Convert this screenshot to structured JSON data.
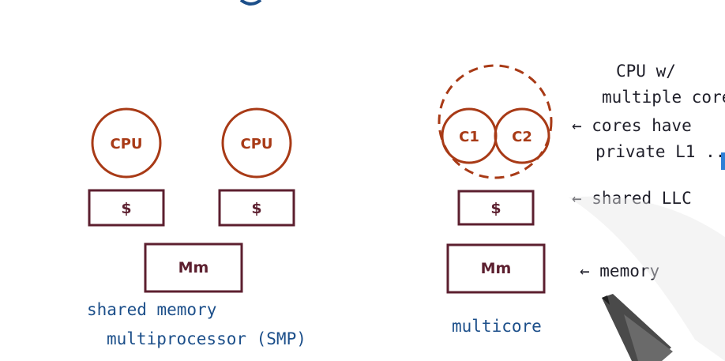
{
  "colors": {
    "cpu_stroke": "#a83a16",
    "box_stroke": "#5c1f2f",
    "caption_blue": "#1c4f8a",
    "note_ink": "#1f1f2a",
    "accent_blue": "#2f7fd6"
  },
  "smp": {
    "cpu_labels": [
      "CPU",
      "CPU"
    ],
    "cache_labels": [
      "$",
      "$"
    ],
    "memory_label": "Mm",
    "caption_line1": "shared memory",
    "caption_line2": "multiprocessor (SMP)"
  },
  "multicore": {
    "core_labels": [
      "C1",
      "C2"
    ],
    "cache_label": "$",
    "memory_label": "Mm",
    "caption": "multicore"
  },
  "notes": {
    "cpu_line1": "CPU w/",
    "cpu_line2": "multiple core",
    "cores_line1": "← cores have",
    "cores_line2": "private L1 ...",
    "llc": "← shared LLC",
    "memory": "← memory"
  },
  "icons": [
    "pen-icon"
  ]
}
